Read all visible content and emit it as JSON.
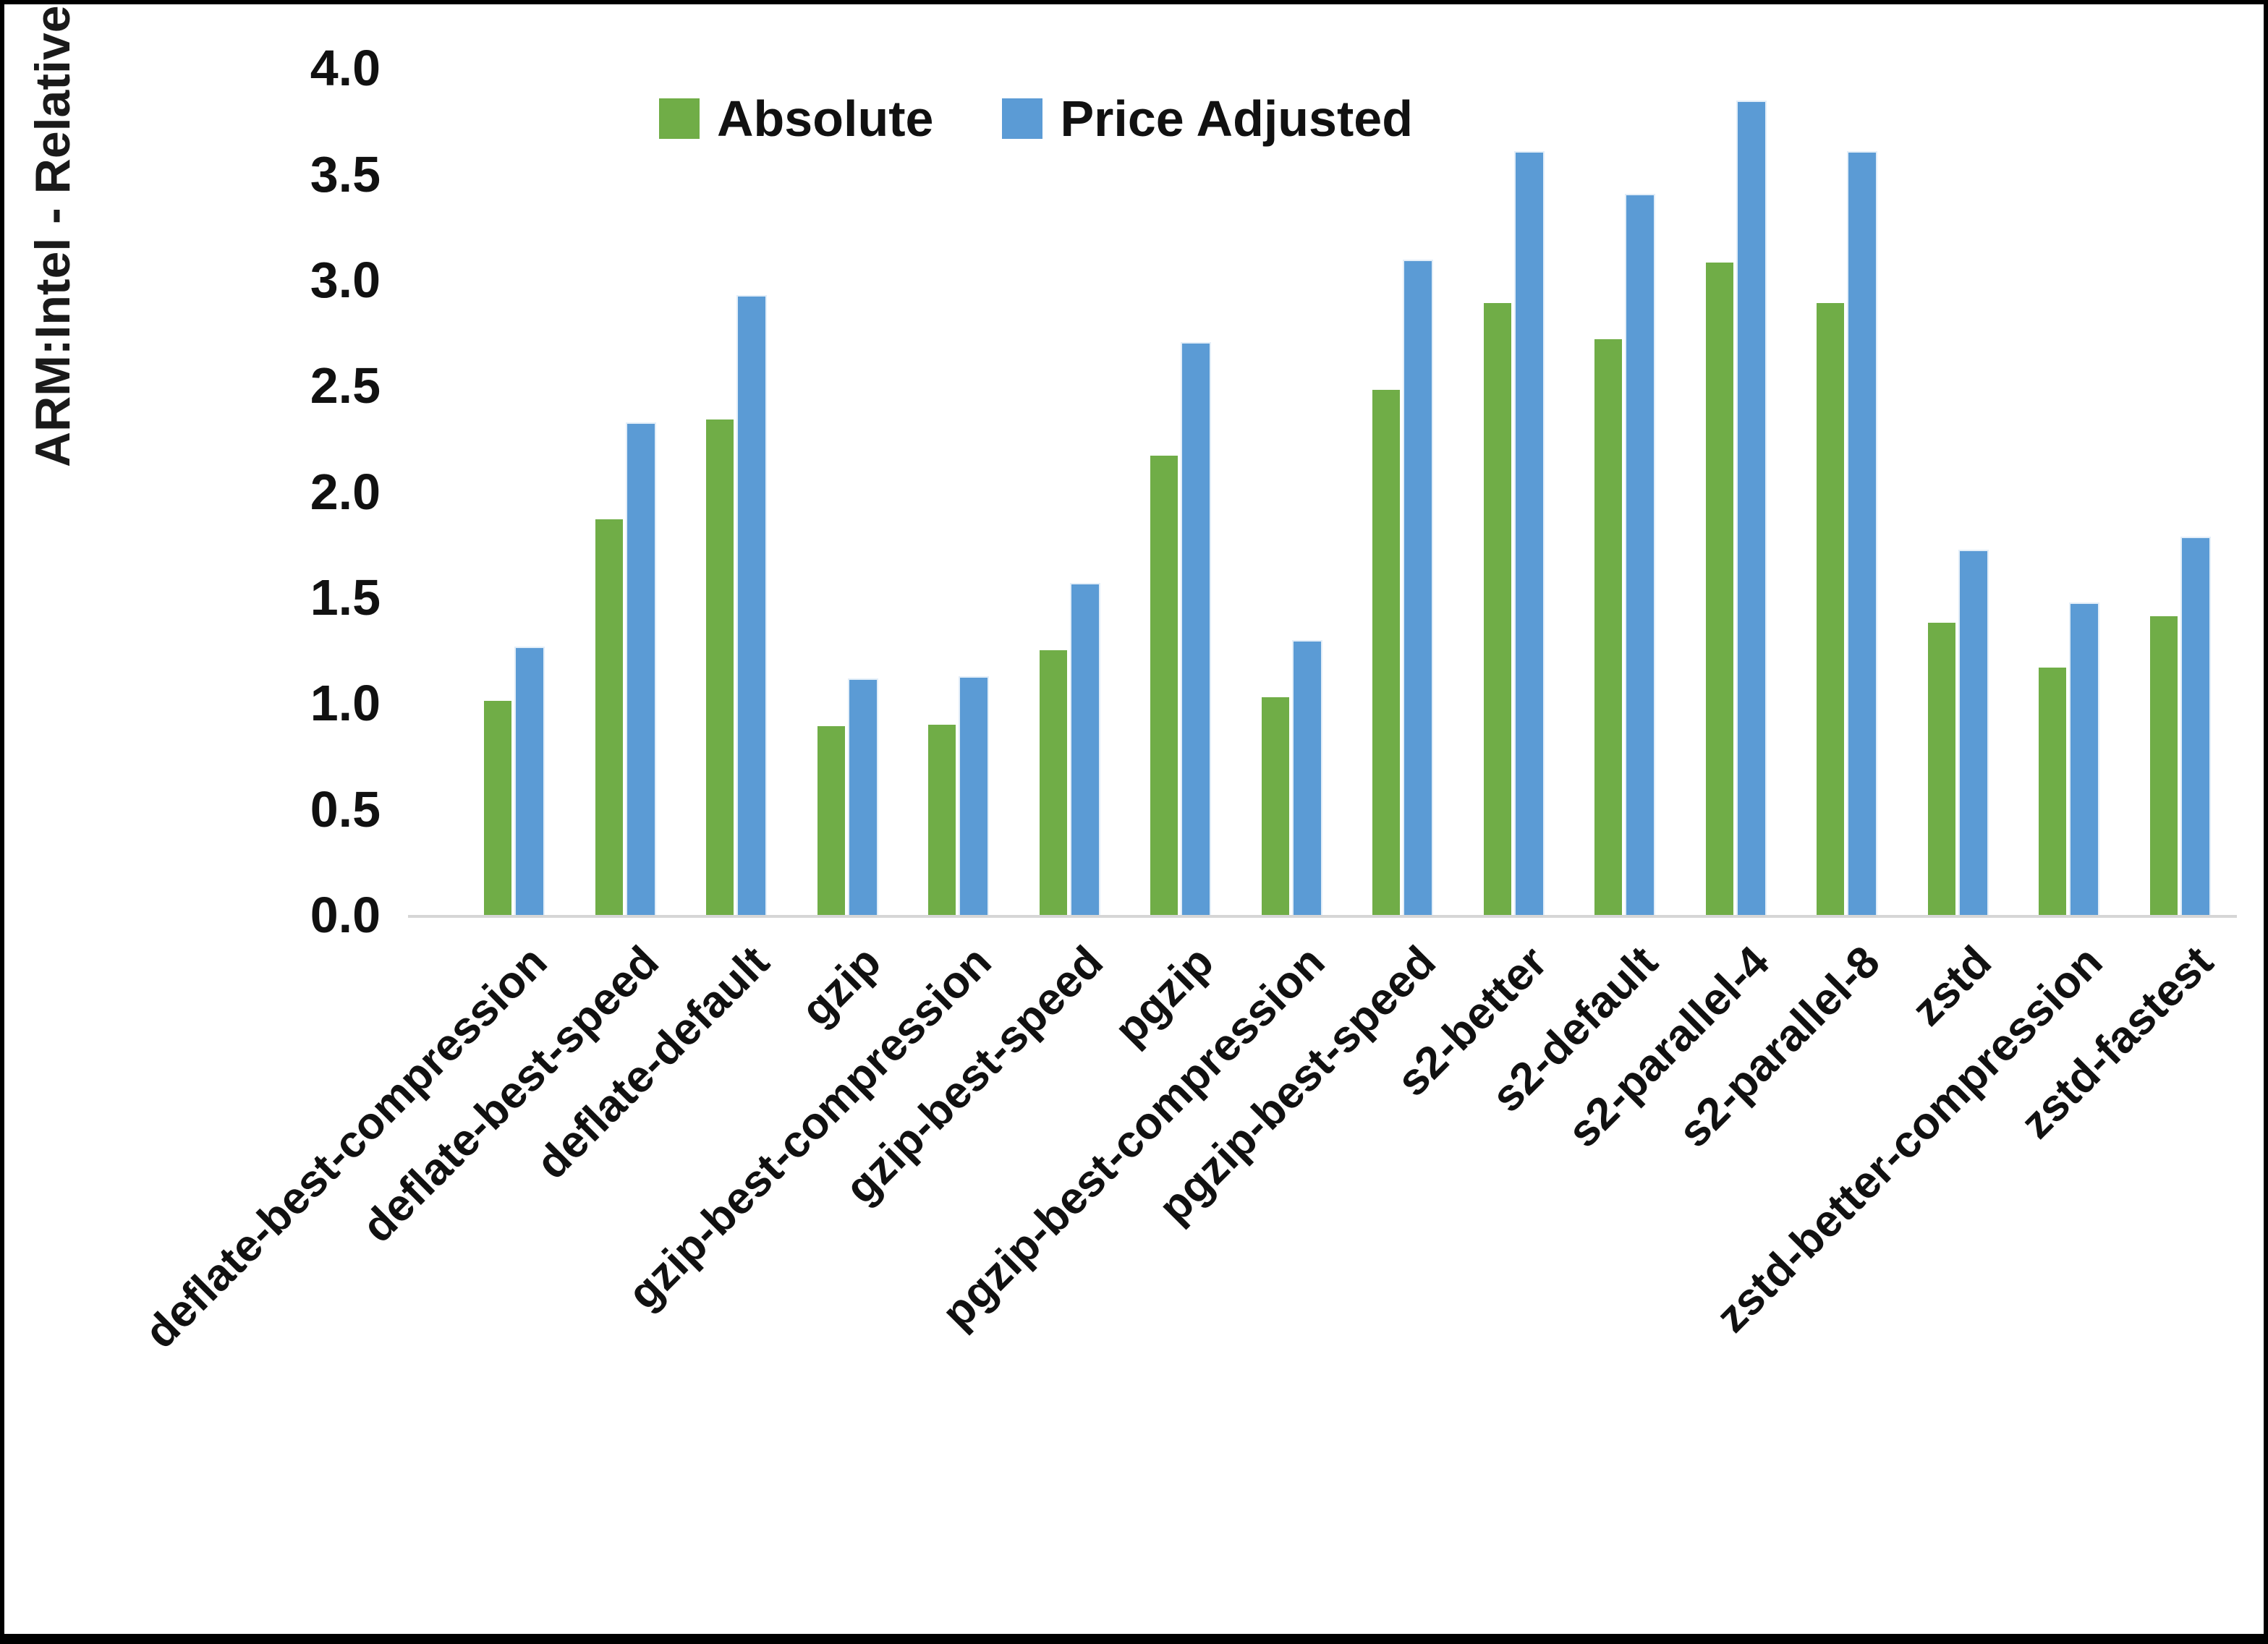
{
  "chart_data": {
    "type": "bar",
    "title": "",
    "xlabel": "",
    "ylabel": "ARM:Intel - Relative Performance",
    "ylim": [
      0.0,
      4.0
    ],
    "ytick_step": 0.5,
    "grid": false,
    "legend_position": "top-center",
    "categories": [
      "deflate-best-compression",
      "deflate-best-speed",
      "deflate-default",
      "gzip",
      "gzip-best-compression",
      "gzip-best-speed",
      "pgzip",
      "pgzip-best-compression",
      "pgzip-best-speed",
      "s2-better",
      "s2-default",
      "s2-parallel-4",
      "s2-parallel-8",
      "zstd",
      "zstd-better-compression",
      "zstd-fastest"
    ],
    "series": [
      {
        "name": "Absolute",
        "color": "#70ad47",
        "values": [
          1.01,
          1.87,
          2.34,
          0.89,
          0.9,
          1.25,
          2.17,
          1.03,
          2.48,
          2.89,
          2.72,
          3.08,
          2.89,
          1.38,
          1.17,
          1.41
        ]
      },
      {
        "name": "Price Adjusted",
        "color": "#5b9bd5",
        "values": [
          1.26,
          2.32,
          2.92,
          1.11,
          1.12,
          1.56,
          2.7,
          1.29,
          3.09,
          3.6,
          3.4,
          3.84,
          3.6,
          1.72,
          1.47,
          1.78
        ]
      }
    ]
  },
  "legend": {
    "absolute_label": "Absolute",
    "price_adjusted_label": "Price Adjusted"
  },
  "axis": {
    "y_title": "ARM:Intel - Relative Performance"
  },
  "colors": {
    "absolute": "#70ad47",
    "price_adjusted": "#5b9bd5",
    "axis_line": "#d6d6d6",
    "text": "#111111",
    "background": "#ffffff",
    "frame_border": "#000000"
  }
}
